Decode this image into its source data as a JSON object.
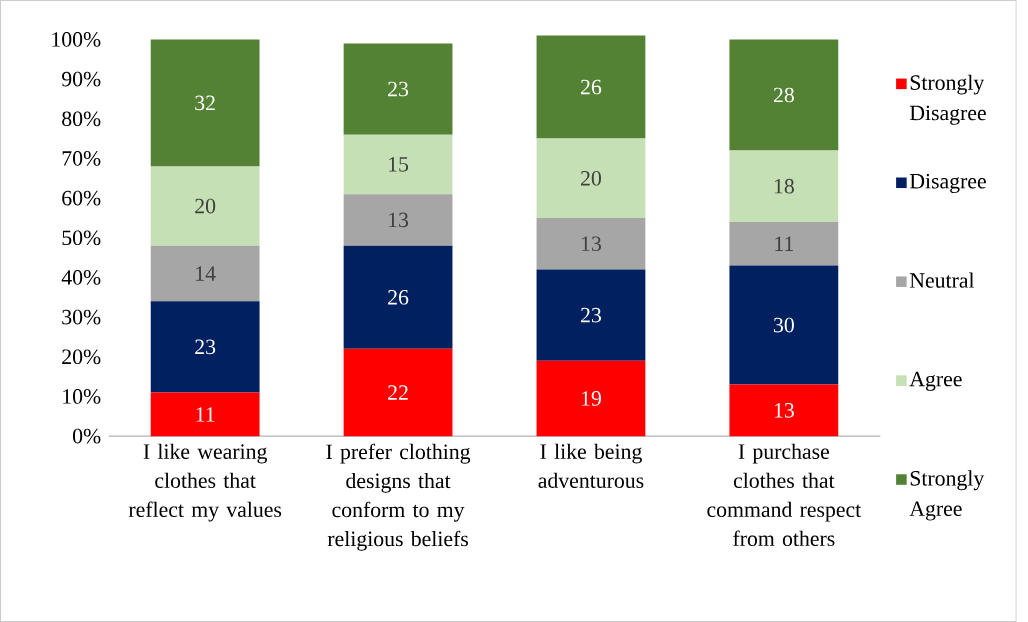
{
  "chart_data": {
    "type": "bar",
    "stacked": true,
    "categories": [
      "I like wearing clothes that reflect my values",
      "I prefer clothing designs that conform to my religious beliefs",
      "I like being adventurous",
      "I purchase clothes that command respect from others"
    ],
    "series": [
      {
        "name": "Strongly Disagree",
        "color": "#ff0000",
        "values": [
          11,
          22,
          19,
          13
        ]
      },
      {
        "name": "Disagree",
        "color": "#002060",
        "values": [
          23,
          26,
          23,
          30
        ]
      },
      {
        "name": "Neutral",
        "color": "#a6a6a6",
        "values": [
          14,
          13,
          13,
          11
        ]
      },
      {
        "name": "Agree",
        "color": "#c5e0b4",
        "values": [
          20,
          15,
          20,
          18
        ]
      },
      {
        "name": "Strongly Agree",
        "color": "#548235",
        "values": [
          32,
          23,
          26,
          28
        ]
      }
    ],
    "ylim": [
      0,
      101
    ],
    "yticks": [
      {
        "value": 0,
        "label": "0%"
      },
      {
        "value": 10,
        "label": "10%"
      },
      {
        "value": 20,
        "label": "20%"
      },
      {
        "value": 30,
        "label": "30%"
      },
      {
        "value": 40,
        "label": "40%"
      },
      {
        "value": 50,
        "label": "50%"
      },
      {
        "value": 60,
        "label": "60%"
      },
      {
        "value": 70,
        "label": "70%"
      },
      {
        "value": 80,
        "label": "80%"
      },
      {
        "value": 90,
        "label": "90%"
      },
      {
        "value": 100,
        "label": "100%"
      }
    ],
    "data_labels": true,
    "legend": "right"
  }
}
